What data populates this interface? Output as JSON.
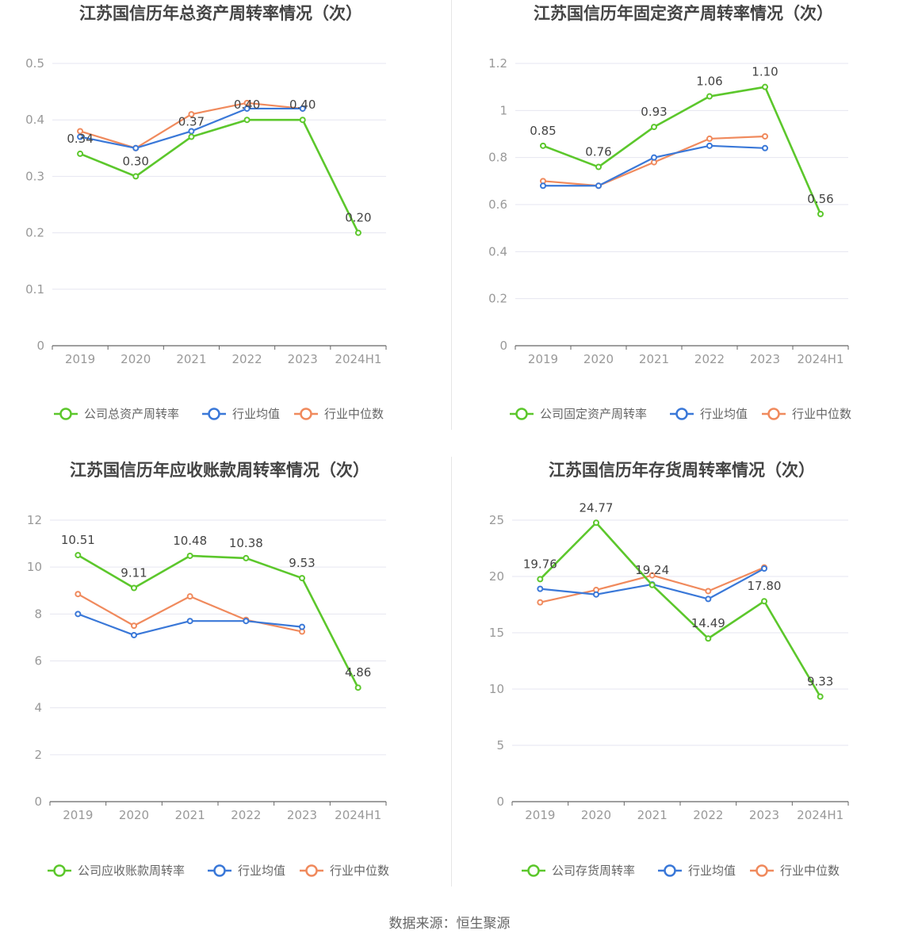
{
  "source_text": "数据来源：恒生聚源",
  "colors": {
    "company": "#5cc72c",
    "avg": "#3a78d8",
    "median": "#f08a5d",
    "grid": "#e6e6f0",
    "axis": "#666666",
    "tick_text": "#999999",
    "title": "#444444"
  },
  "icons": {
    "legend": "circle-line-icon"
  },
  "chart_data": [
    {
      "type": "line",
      "title": "江苏国信历年总资产周转率情况（次）",
      "categories": [
        "2019",
        "2020",
        "2021",
        "2022",
        "2023",
        "2024H1"
      ],
      "ylim": [
        0,
        0.5
      ],
      "yticks": [
        "0",
        "0.1",
        "0.2",
        "0.3",
        "0.4",
        "0.5"
      ],
      "yticks_values": [
        0,
        0.1,
        0.2,
        0.3,
        0.4,
        0.5
      ],
      "series": [
        {
          "name": "公司总资产周转率",
          "key": "company",
          "values": [
            0.34,
            0.3,
            0.37,
            0.4,
            0.4,
            0.2
          ],
          "labels": [
            "0.34",
            "0.30",
            "0.37",
            "0.40",
            "0.40",
            "0.20"
          ]
        },
        {
          "name": "行业均值",
          "key": "avg",
          "values": [
            0.37,
            0.35,
            0.38,
            0.42,
            0.42,
            null
          ]
        },
        {
          "name": "行业中位数",
          "key": "median",
          "values": [
            0.38,
            0.35,
            0.41,
            0.43,
            0.42,
            null
          ]
        }
      ],
      "legend_position": "bottom",
      "grid": true
    },
    {
      "type": "line",
      "title": "江苏国信历年固定资产周转率情况（次）",
      "categories": [
        "2019",
        "2020",
        "2021",
        "2022",
        "2023",
        "2024H1"
      ],
      "ylim": [
        0,
        1.2
      ],
      "yticks": [
        "0",
        "0.2",
        "0.4",
        "0.6",
        "0.8",
        "1",
        "1.2"
      ],
      "yticks_values": [
        0,
        0.2,
        0.4,
        0.6,
        0.8,
        1.0,
        1.2
      ],
      "series": [
        {
          "name": "公司固定资产周转率",
          "key": "company",
          "values": [
            0.85,
            0.76,
            0.93,
            1.06,
            1.1,
            0.56
          ],
          "labels": [
            "0.85",
            "0.76",
            "0.93",
            "1.06",
            "1.10",
            "0.56"
          ]
        },
        {
          "name": "行业均值",
          "key": "avg",
          "values": [
            0.68,
            0.68,
            0.8,
            0.85,
            0.84,
            null
          ]
        },
        {
          "name": "行业中位数",
          "key": "median",
          "values": [
            0.7,
            0.68,
            0.78,
            0.88,
            0.89,
            null
          ]
        }
      ],
      "legend_position": "bottom",
      "grid": true
    },
    {
      "type": "line",
      "title": "江苏国信历年应收账款周转率情况（次）",
      "categories": [
        "2019",
        "2020",
        "2021",
        "2022",
        "2023",
        "2024H1"
      ],
      "ylim": [
        0,
        12
      ],
      "yticks": [
        "0",
        "2",
        "4",
        "6",
        "8",
        "10",
        "12"
      ],
      "yticks_values": [
        0,
        2,
        4,
        6,
        8,
        10,
        12
      ],
      "series": [
        {
          "name": "公司应收账款周转率",
          "key": "company",
          "values": [
            10.51,
            9.11,
            10.48,
            10.38,
            9.53,
            4.86
          ],
          "labels": [
            "10.51",
            "9.11",
            "10.48",
            "10.38",
            "9.53",
            "4.86"
          ]
        },
        {
          "name": "行业均值",
          "key": "avg",
          "values": [
            8.0,
            7.1,
            7.7,
            7.7,
            7.45,
            null
          ]
        },
        {
          "name": "行业中位数",
          "key": "median",
          "values": [
            8.85,
            7.5,
            8.75,
            7.75,
            7.25,
            null
          ]
        }
      ],
      "legend_position": "bottom",
      "grid": true
    },
    {
      "type": "line",
      "title": "江苏国信历年存货周转率情况（次）",
      "categories": [
        "2019",
        "2020",
        "2021",
        "2022",
        "2023",
        "2024H1"
      ],
      "ylim": [
        0,
        25
      ],
      "yticks": [
        "0",
        "5",
        "10",
        "15",
        "20",
        "25"
      ],
      "yticks_values": [
        0,
        5,
        10,
        15,
        20,
        25
      ],
      "series": [
        {
          "name": "公司存货周转率",
          "key": "company",
          "values": [
            19.76,
            24.77,
            19.24,
            14.49,
            17.8,
            9.33
          ],
          "labels": [
            "19.76",
            "24.77",
            "19.24",
            "14.49",
            "17.80",
            "9.33"
          ]
        },
        {
          "name": "行业均值",
          "key": "avg",
          "values": [
            18.9,
            18.4,
            19.3,
            18.0,
            20.7,
            null
          ]
        },
        {
          "name": "行业中位数",
          "key": "median",
          "values": [
            17.7,
            18.8,
            20.1,
            18.7,
            20.8,
            null
          ]
        }
      ],
      "legend_position": "bottom",
      "grid": true
    }
  ]
}
